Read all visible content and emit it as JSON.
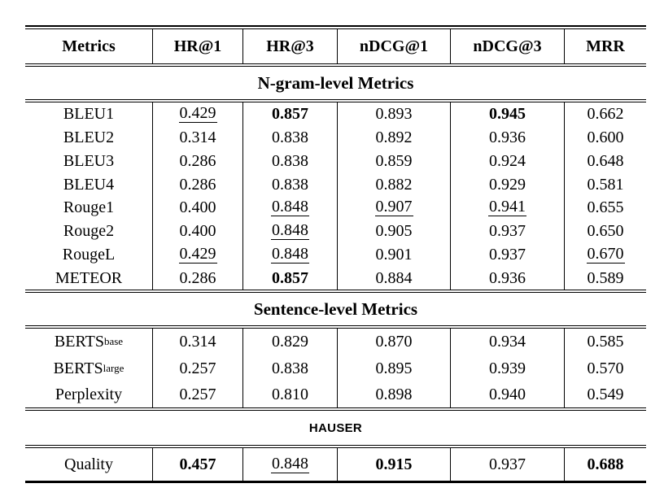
{
  "page": {
    "background_color": "#ffffff",
    "text_color": "#000000"
  },
  "table": {
    "columns": [
      "Metrics",
      "HR@1",
      "HR@3",
      "nDCG@1",
      "nDCG@3",
      "MRR"
    ],
    "sections": [
      {
        "title": "N-gram-level Metrics",
        "rows": [
          {
            "metric": "BLEU1",
            "values": [
              {
                "v": "0.429",
                "s": "u"
              },
              {
                "v": "0.857",
                "s": "b"
              },
              {
                "v": "0.893",
                "s": ""
              },
              {
                "v": "0.945",
                "s": "b"
              },
              {
                "v": "0.662",
                "s": ""
              }
            ]
          },
          {
            "metric": "BLEU2",
            "values": [
              {
                "v": "0.314",
                "s": ""
              },
              {
                "v": "0.838",
                "s": ""
              },
              {
                "v": "0.892",
                "s": ""
              },
              {
                "v": "0.936",
                "s": ""
              },
              {
                "v": "0.600",
                "s": ""
              }
            ]
          },
          {
            "metric": "BLEU3",
            "values": [
              {
                "v": "0.286",
                "s": ""
              },
              {
                "v": "0.838",
                "s": ""
              },
              {
                "v": "0.859",
                "s": ""
              },
              {
                "v": "0.924",
                "s": ""
              },
              {
                "v": "0.648",
                "s": ""
              }
            ]
          },
          {
            "metric": "BLEU4",
            "values": [
              {
                "v": "0.286",
                "s": ""
              },
              {
                "v": "0.838",
                "s": ""
              },
              {
                "v": "0.882",
                "s": ""
              },
              {
                "v": "0.929",
                "s": ""
              },
              {
                "v": "0.581",
                "s": ""
              }
            ]
          },
          {
            "metric": "Rouge1",
            "values": [
              {
                "v": "0.400",
                "s": ""
              },
              {
                "v": "0.848",
                "s": "u"
              },
              {
                "v": "0.907",
                "s": "u"
              },
              {
                "v": "0.941",
                "s": "u"
              },
              {
                "v": "0.655",
                "s": ""
              }
            ]
          },
          {
            "metric": "Rouge2",
            "values": [
              {
                "v": "0.400",
                "s": ""
              },
              {
                "v": "0.848",
                "s": "u"
              },
              {
                "v": "0.905",
                "s": ""
              },
              {
                "v": "0.937",
                "s": ""
              },
              {
                "v": "0.650",
                "s": ""
              }
            ]
          },
          {
            "metric": "RougeL",
            "values": [
              {
                "v": "0.429",
                "s": "u"
              },
              {
                "v": "0.848",
                "s": "u"
              },
              {
                "v": "0.901",
                "s": ""
              },
              {
                "v": "0.937",
                "s": ""
              },
              {
                "v": "0.670",
                "s": "u"
              }
            ]
          },
          {
            "metric": "METEOR",
            "values": [
              {
                "v": "0.286",
                "s": ""
              },
              {
                "v": "0.857",
                "s": "b"
              },
              {
                "v": "0.884",
                "s": ""
              },
              {
                "v": "0.936",
                "s": ""
              },
              {
                "v": "0.589",
                "s": ""
              }
            ]
          }
        ]
      },
      {
        "title": "Sentence-level Metrics",
        "rows": [
          {
            "metric": "BERTS",
            "metric_sub": "base",
            "values": [
              {
                "v": "0.314",
                "s": ""
              },
              {
                "v": "0.829",
                "s": ""
              },
              {
                "v": "0.870",
                "s": ""
              },
              {
                "v": "0.934",
                "s": ""
              },
              {
                "v": "0.585",
                "s": ""
              }
            ]
          },
          {
            "metric": "BERTS",
            "metric_sub": "large",
            "values": [
              {
                "v": "0.257",
                "s": ""
              },
              {
                "v": "0.838",
                "s": ""
              },
              {
                "v": "0.895",
                "s": ""
              },
              {
                "v": "0.939",
                "s": ""
              },
              {
                "v": "0.570",
                "s": ""
              }
            ]
          },
          {
            "metric": "Perplexity",
            "values": [
              {
                "v": "0.257",
                "s": ""
              },
              {
                "v": "0.810",
                "s": ""
              },
              {
                "v": "0.898",
                "s": ""
              },
              {
                "v": "0.940",
                "s": ""
              },
              {
                "v": "0.549",
                "s": ""
              }
            ]
          }
        ]
      },
      {
        "title": "HAUSER",
        "title_style": "sans",
        "rows": [
          {
            "metric": "Quality",
            "values": [
              {
                "v": "0.457",
                "s": "b"
              },
              {
                "v": "0.848",
                "s": "u"
              },
              {
                "v": "0.915",
                "s": "b"
              },
              {
                "v": "0.937",
                "s": ""
              },
              {
                "v": "0.688",
                "s": "b"
              }
            ]
          }
        ]
      }
    ],
    "emphasis": {
      "b": "bold",
      "u": "underline"
    }
  }
}
